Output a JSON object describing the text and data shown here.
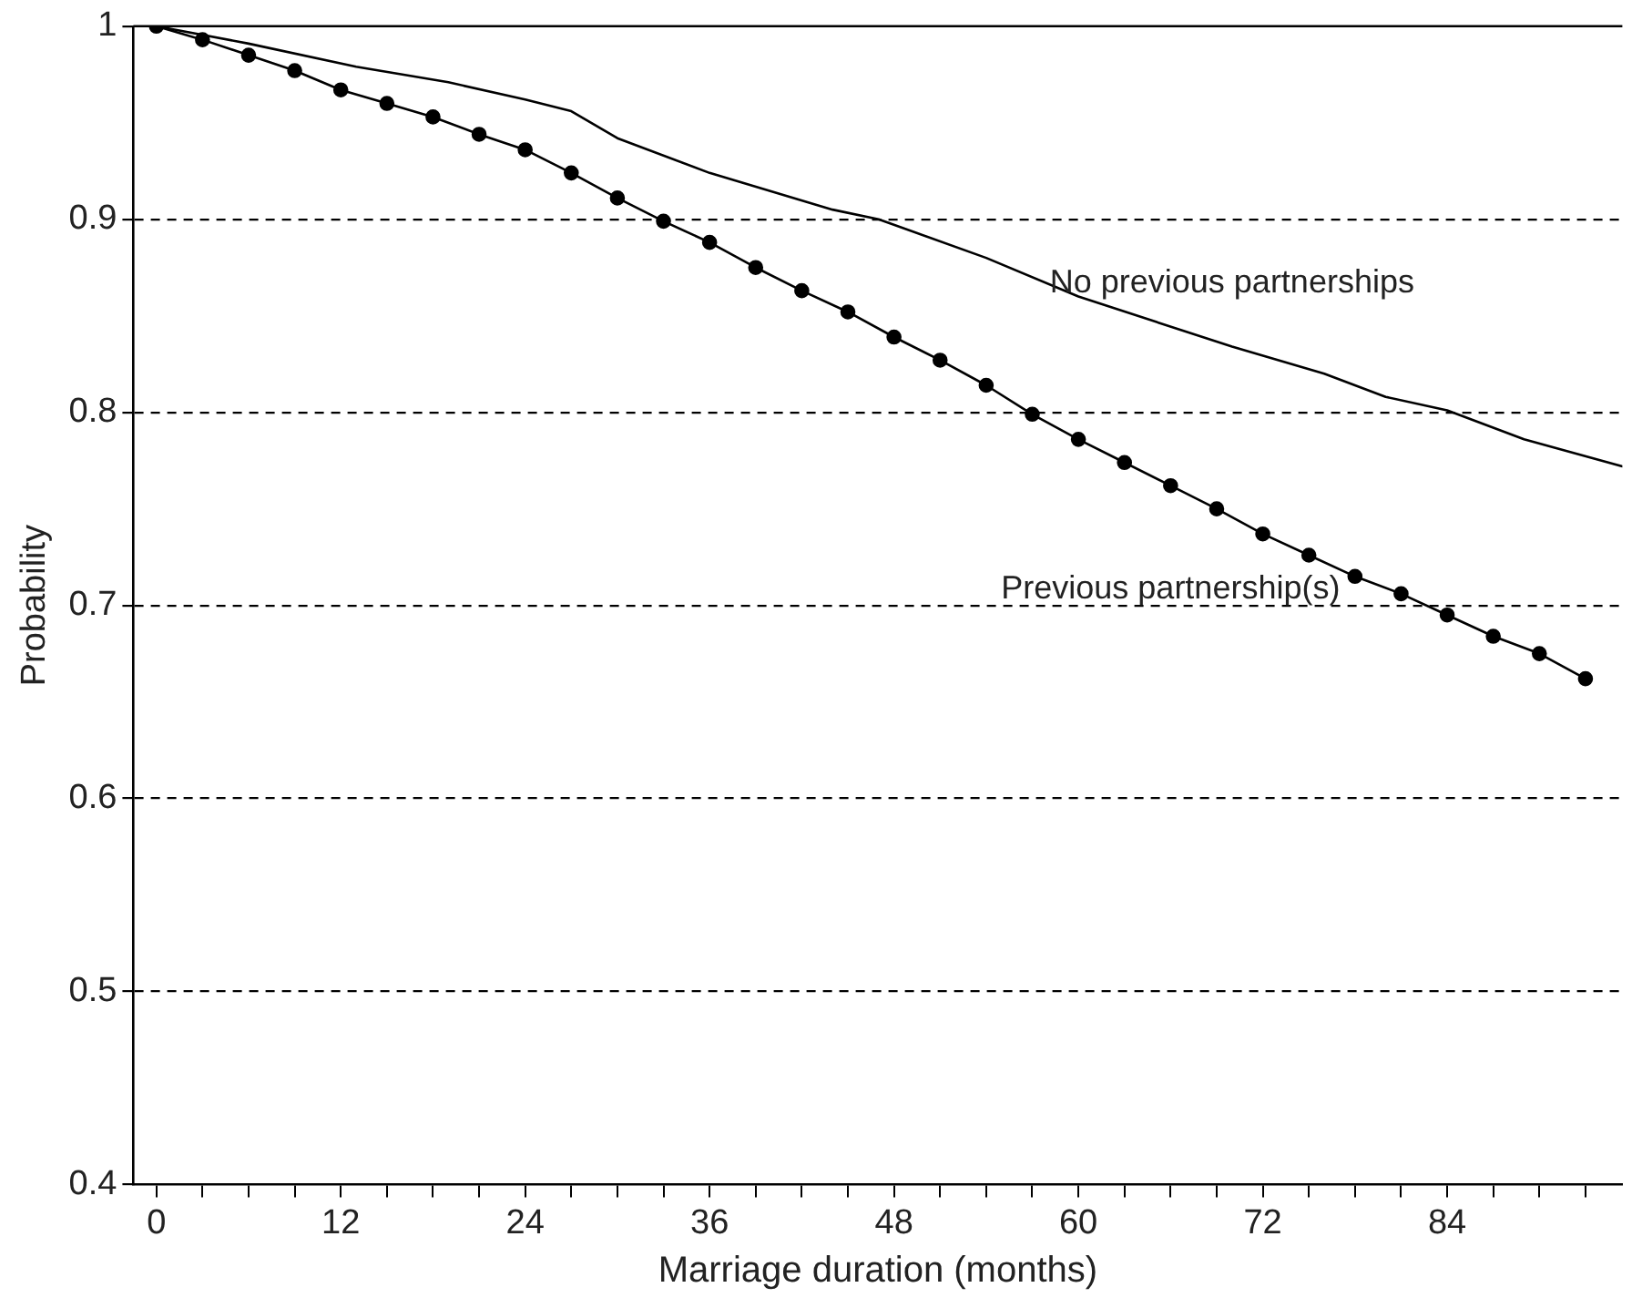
{
  "chart_data": {
    "type": "line",
    "xlabel": "Marriage duration (months)",
    "ylabel": "Probability",
    "xlim": [
      -1.5,
      95.4
    ],
    "ylim": [
      0.4,
      1
    ],
    "xticks": [
      0,
      {
        "value": 3,
        "label": null
      },
      {
        "value": 6,
        "label": null
      },
      {
        "value": 9,
        "label": null
      },
      12,
      {
        "value": 15,
        "label": null
      },
      {
        "value": 18,
        "label": null
      },
      {
        "value": 21,
        "label": null
      },
      24,
      {
        "value": 27,
        "label": null
      },
      {
        "value": 30,
        "label": null
      },
      {
        "value": 33,
        "label": null
      },
      36,
      {
        "value": 39,
        "label": null
      },
      {
        "value": 42,
        "label": null
      },
      {
        "value": 45,
        "label": null
      },
      48,
      {
        "value": 51,
        "label": null
      },
      {
        "value": 54,
        "label": null
      },
      {
        "value": 57,
        "label": null
      },
      60,
      {
        "value": 63,
        "label": null
      },
      {
        "value": 66,
        "label": null
      },
      {
        "value": 69,
        "label": null
      },
      72,
      {
        "value": 75,
        "label": null
      },
      {
        "value": 78,
        "label": null
      },
      {
        "value": 81,
        "label": null
      },
      84,
      {
        "value": 87,
        "label": null
      },
      {
        "value": 90,
        "label": null
      },
      {
        "value": 93,
        "label": null
      }
    ],
    "yticks": [
      0.4,
      0.5,
      0.6,
      0.7,
      0.8,
      0.9,
      1
    ],
    "grid": "y",
    "line_style": "solid",
    "legend": false,
    "series": [
      {
        "name": "No previous partnerships",
        "color": "#000000",
        "marker": "none",
        "x": [
          0,
          6,
          13,
          19,
          24,
          27,
          30,
          36,
          44,
          47,
          54,
          60,
          70,
          76,
          80,
          84,
          89,
          95.4
        ],
        "values": [
          1,
          0.991,
          0.979,
          0.971,
          0.962,
          0.956,
          0.942,
          0.924,
          0.905,
          0.9,
          0.88,
          0.86,
          0.834,
          0.82,
          0.808,
          0.801,
          0.786,
          0.772
        ]
      },
      {
        "name": "Previous partnership(s)",
        "color": "#000000",
        "marker": "circle",
        "x": [
          0,
          3,
          6,
          9,
          12,
          15,
          18,
          21,
          24,
          27,
          30,
          33,
          36,
          39,
          42,
          45,
          48,
          51,
          54,
          57,
          60,
          63,
          66,
          69,
          72,
          75,
          78,
          81,
          84,
          87,
          90,
          93
        ],
        "values": [
          1,
          0.993,
          0.985,
          0.977,
          0.967,
          0.96,
          0.953,
          0.944,
          0.936,
          0.924,
          0.911,
          0.899,
          0.888,
          0.875,
          0.863,
          0.852,
          0.839,
          0.827,
          0.814,
          0.799,
          0.786,
          0.774,
          0.762,
          0.75,
          0.737,
          0.726,
          0.715,
          0.706,
          0.695,
          0.684,
          0.675,
          0.662
        ]
      }
    ]
  }
}
